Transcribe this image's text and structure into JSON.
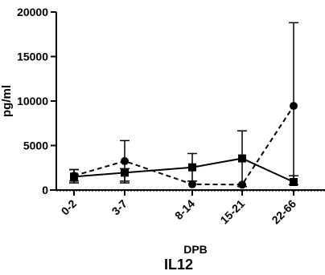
{
  "chart_data": {
    "type": "line",
    "title": "IL12",
    "xlabel": "DPB",
    "ylabel": "pg/ml",
    "categories": [
      "0-2",
      "3-7",
      "8-14",
      "15-21",
      "22-66"
    ],
    "ylim": [
      0,
      20000
    ],
    "yticks": [
      0,
      5000,
      10000,
      15000,
      20000
    ],
    "ytick_labels": [
      "0",
      "5000",
      "10000",
      "15000",
      "20000"
    ],
    "grid": false,
    "legend": "none",
    "series": [
      {
        "marker": "square",
        "line_style": "solid",
        "color": "#000000",
        "values": [
          1500,
          1950,
          2550,
          3550,
          900
        ],
        "error_low": [
          800,
          800,
          1000,
          400,
          600
        ],
        "error_high": [
          2300,
          2400,
          4100,
          6650,
          1600
        ]
      },
      {
        "marker": "circle",
        "line_style": "dashed",
        "color": "#000000",
        "values": [
          1600,
          3250,
          650,
          600,
          9450
        ],
        "error_low": [
          1000,
          1000,
          650,
          600,
          600
        ],
        "error_high": [
          2300,
          5550,
          650,
          600,
          18800
        ]
      }
    ]
  }
}
